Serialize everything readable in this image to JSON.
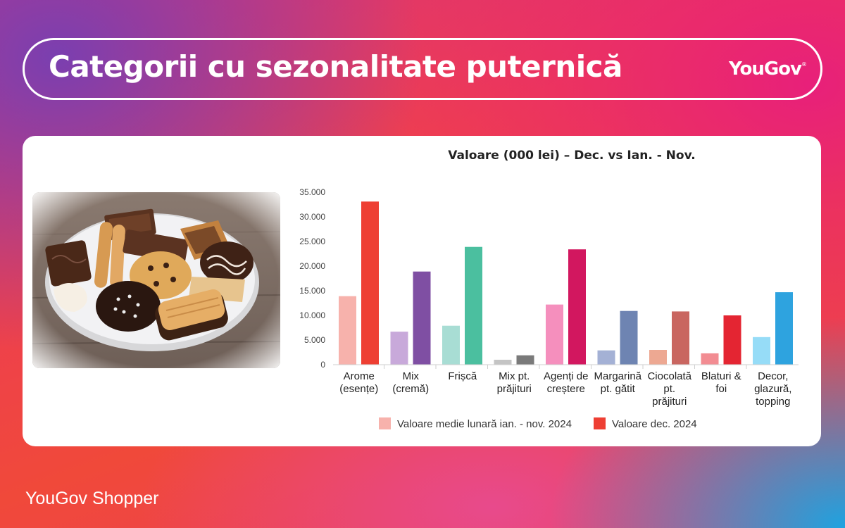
{
  "header": {
    "title": "Categorii cu sezonalitate puternică",
    "brand": "YouGov",
    "brand_mark": "®"
  },
  "footer": {
    "text": "YouGov Shopper"
  },
  "image": {
    "icon": "cookies-plate-photo"
  },
  "chart_data": {
    "type": "bar",
    "title": "Valoare (000 lei) – Dec. vs Ian. - Nov.",
    "xlabel": "",
    "ylabel": "",
    "ylim": [
      0,
      35000
    ],
    "yticks": [
      "0",
      "5.000",
      "10.000",
      "15.000",
      "20.000",
      "25.000",
      "30.000",
      "35.000"
    ],
    "grid": false,
    "legend_position": "bottom",
    "categories": [
      [
        "Arome",
        "(esențe)"
      ],
      [
        "Mix",
        "(cremă)"
      ],
      [
        "Frișcă"
      ],
      [
        "Mix pt.",
        "prăjituri"
      ],
      [
        "Agenți de",
        "creștere"
      ],
      [
        "Margarină",
        "pt. gătit"
      ],
      [
        "Ciocolată",
        "pt.",
        "prăjituri"
      ],
      [
        "Blaturi &",
        "foi"
      ],
      [
        "Decor,",
        "glazură,",
        "topping"
      ]
    ],
    "series": [
      {
        "name": "Valoare medie lunară ian. - nov. 2024",
        "legend_color": "#f7b2ac",
        "values": [
          13900,
          6700,
          7900,
          1000,
          12200,
          2900,
          3000,
          2300,
          5600
        ],
        "colors": [
          "#f7b2ac",
          "#c8a9da",
          "#a8ddd4",
          "#c4c4c4",
          "#f58fbd",
          "#a4b1d5",
          "#eda892",
          "#f28c92",
          "#96dcf7"
        ]
      },
      {
        "name": "Valoare dec. 2024",
        "legend_color": "#ee3f33",
        "values": [
          33100,
          18900,
          23900,
          1900,
          23400,
          10900,
          10800,
          10000,
          14700
        ],
        "colors": [
          "#ee3f33",
          "#7f4fa3",
          "#4bbf9f",
          "#7a7a7a",
          "#d2175f",
          "#6e84b2",
          "#c96660",
          "#e42532",
          "#2ea3df"
        ]
      }
    ]
  }
}
